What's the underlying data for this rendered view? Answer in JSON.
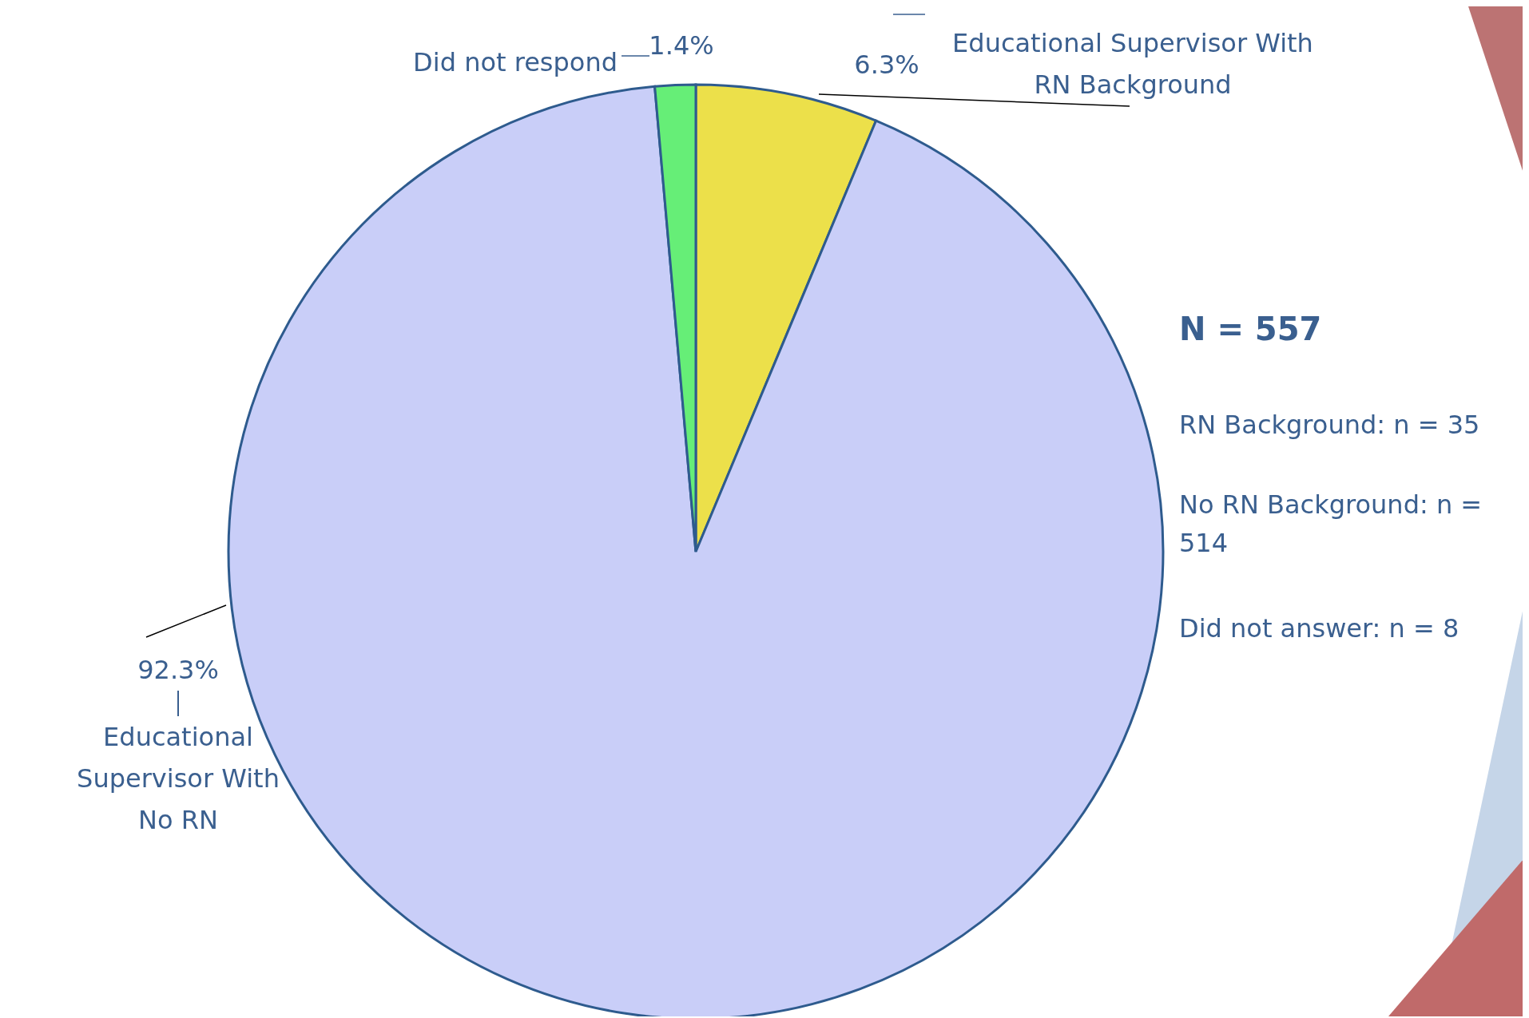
{
  "chart_data": {
    "type": "pie",
    "categories": [
      "Educational Supervisor With RN Background",
      "Educational Supervisor With No RN",
      "Did not respond"
    ],
    "values": [
      6.3,
      92.3,
      1.4
    ],
    "value_labels": [
      "6.3%",
      "92.3%",
      "1.4%"
    ],
    "colors": [
      "#ece04a",
      "#c9cef8",
      "#66ee77"
    ],
    "annotations": [
      "N = 557",
      "RN Background: n = 35",
      "No RN Background: n = 514",
      "Did not answer: n = 8"
    ]
  }
}
